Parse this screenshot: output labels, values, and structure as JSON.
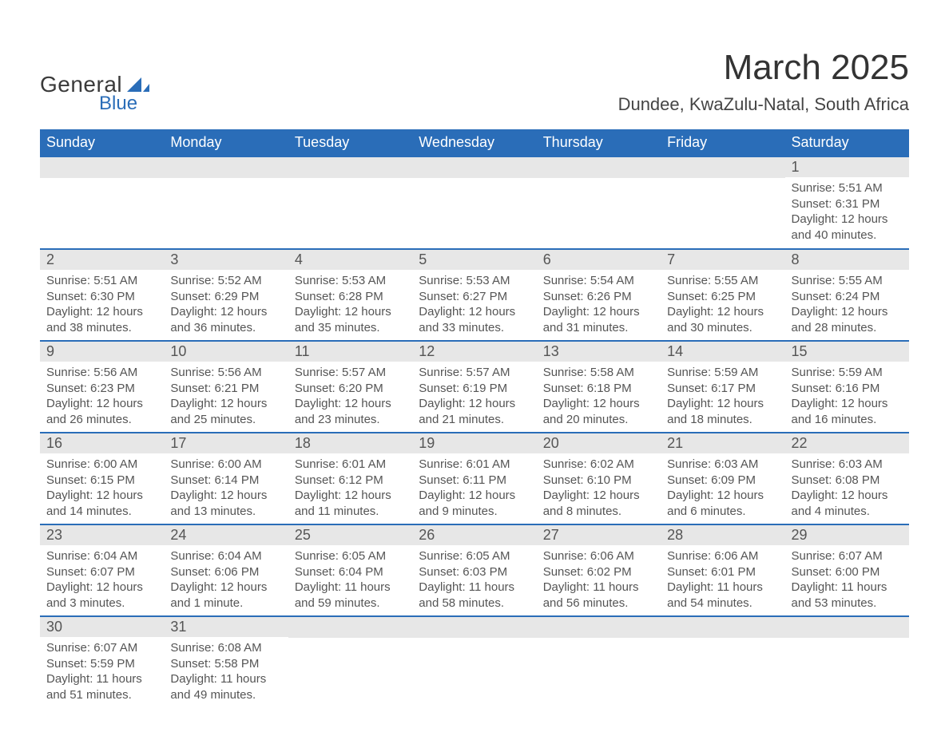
{
  "brand": {
    "line1": "General",
    "line2": "Blue",
    "shape_color": "#2a6db8",
    "text_color_top": "#3a3a3a",
    "text_color_bottom": "#2a6db8"
  },
  "title": "March 2025",
  "subtitle": "Dundee, KwaZulu-Natal, South Africa",
  "colors": {
    "header_bg": "#2a6db8",
    "header_text": "#ffffff",
    "daynum_bg": "#e7e7e7",
    "cell_border": "#2a6db8",
    "body_text": "#555555",
    "background": "#ffffff"
  },
  "fonts": {
    "title_size_pt": 33,
    "subtitle_size_pt": 17,
    "header_size_pt": 14,
    "daynum_size_pt": 14,
    "body_size_pt": 11
  },
  "day_names": [
    "Sunday",
    "Monday",
    "Tuesday",
    "Wednesday",
    "Thursday",
    "Friday",
    "Saturday"
  ],
  "weeks": [
    [
      null,
      null,
      null,
      null,
      null,
      null,
      {
        "day": "1",
        "sunrise": "Sunrise: 5:51 AM",
        "sunset": "Sunset: 6:31 PM",
        "daylight": "Daylight: 12 hours and 40 minutes."
      }
    ],
    [
      {
        "day": "2",
        "sunrise": "Sunrise: 5:51 AM",
        "sunset": "Sunset: 6:30 PM",
        "daylight": "Daylight: 12 hours and 38 minutes."
      },
      {
        "day": "3",
        "sunrise": "Sunrise: 5:52 AM",
        "sunset": "Sunset: 6:29 PM",
        "daylight": "Daylight: 12 hours and 36 minutes."
      },
      {
        "day": "4",
        "sunrise": "Sunrise: 5:53 AM",
        "sunset": "Sunset: 6:28 PM",
        "daylight": "Daylight: 12 hours and 35 minutes."
      },
      {
        "day": "5",
        "sunrise": "Sunrise: 5:53 AM",
        "sunset": "Sunset: 6:27 PM",
        "daylight": "Daylight: 12 hours and 33 minutes."
      },
      {
        "day": "6",
        "sunrise": "Sunrise: 5:54 AM",
        "sunset": "Sunset: 6:26 PM",
        "daylight": "Daylight: 12 hours and 31 minutes."
      },
      {
        "day": "7",
        "sunrise": "Sunrise: 5:55 AM",
        "sunset": "Sunset: 6:25 PM",
        "daylight": "Daylight: 12 hours and 30 minutes."
      },
      {
        "day": "8",
        "sunrise": "Sunrise: 5:55 AM",
        "sunset": "Sunset: 6:24 PM",
        "daylight": "Daylight: 12 hours and 28 minutes."
      }
    ],
    [
      {
        "day": "9",
        "sunrise": "Sunrise: 5:56 AM",
        "sunset": "Sunset: 6:23 PM",
        "daylight": "Daylight: 12 hours and 26 minutes."
      },
      {
        "day": "10",
        "sunrise": "Sunrise: 5:56 AM",
        "sunset": "Sunset: 6:21 PM",
        "daylight": "Daylight: 12 hours and 25 minutes."
      },
      {
        "day": "11",
        "sunrise": "Sunrise: 5:57 AM",
        "sunset": "Sunset: 6:20 PM",
        "daylight": "Daylight: 12 hours and 23 minutes."
      },
      {
        "day": "12",
        "sunrise": "Sunrise: 5:57 AM",
        "sunset": "Sunset: 6:19 PM",
        "daylight": "Daylight: 12 hours and 21 minutes."
      },
      {
        "day": "13",
        "sunrise": "Sunrise: 5:58 AM",
        "sunset": "Sunset: 6:18 PM",
        "daylight": "Daylight: 12 hours and 20 minutes."
      },
      {
        "day": "14",
        "sunrise": "Sunrise: 5:59 AM",
        "sunset": "Sunset: 6:17 PM",
        "daylight": "Daylight: 12 hours and 18 minutes."
      },
      {
        "day": "15",
        "sunrise": "Sunrise: 5:59 AM",
        "sunset": "Sunset: 6:16 PM",
        "daylight": "Daylight: 12 hours and 16 minutes."
      }
    ],
    [
      {
        "day": "16",
        "sunrise": "Sunrise: 6:00 AM",
        "sunset": "Sunset: 6:15 PM",
        "daylight": "Daylight: 12 hours and 14 minutes."
      },
      {
        "day": "17",
        "sunrise": "Sunrise: 6:00 AM",
        "sunset": "Sunset: 6:14 PM",
        "daylight": "Daylight: 12 hours and 13 minutes."
      },
      {
        "day": "18",
        "sunrise": "Sunrise: 6:01 AM",
        "sunset": "Sunset: 6:12 PM",
        "daylight": "Daylight: 12 hours and 11 minutes."
      },
      {
        "day": "19",
        "sunrise": "Sunrise: 6:01 AM",
        "sunset": "Sunset: 6:11 PM",
        "daylight": "Daylight: 12 hours and 9 minutes."
      },
      {
        "day": "20",
        "sunrise": "Sunrise: 6:02 AM",
        "sunset": "Sunset: 6:10 PM",
        "daylight": "Daylight: 12 hours and 8 minutes."
      },
      {
        "day": "21",
        "sunrise": "Sunrise: 6:03 AM",
        "sunset": "Sunset: 6:09 PM",
        "daylight": "Daylight: 12 hours and 6 minutes."
      },
      {
        "day": "22",
        "sunrise": "Sunrise: 6:03 AM",
        "sunset": "Sunset: 6:08 PM",
        "daylight": "Daylight: 12 hours and 4 minutes."
      }
    ],
    [
      {
        "day": "23",
        "sunrise": "Sunrise: 6:04 AM",
        "sunset": "Sunset: 6:07 PM",
        "daylight": "Daylight: 12 hours and 3 minutes."
      },
      {
        "day": "24",
        "sunrise": "Sunrise: 6:04 AM",
        "sunset": "Sunset: 6:06 PM",
        "daylight": "Daylight: 12 hours and 1 minute."
      },
      {
        "day": "25",
        "sunrise": "Sunrise: 6:05 AM",
        "sunset": "Sunset: 6:04 PM",
        "daylight": "Daylight: 11 hours and 59 minutes."
      },
      {
        "day": "26",
        "sunrise": "Sunrise: 6:05 AM",
        "sunset": "Sunset: 6:03 PM",
        "daylight": "Daylight: 11 hours and 58 minutes."
      },
      {
        "day": "27",
        "sunrise": "Sunrise: 6:06 AM",
        "sunset": "Sunset: 6:02 PM",
        "daylight": "Daylight: 11 hours and 56 minutes."
      },
      {
        "day": "28",
        "sunrise": "Sunrise: 6:06 AM",
        "sunset": "Sunset: 6:01 PM",
        "daylight": "Daylight: 11 hours and 54 minutes."
      },
      {
        "day": "29",
        "sunrise": "Sunrise: 6:07 AM",
        "sunset": "Sunset: 6:00 PM",
        "daylight": "Daylight: 11 hours and 53 minutes."
      }
    ],
    [
      {
        "day": "30",
        "sunrise": "Sunrise: 6:07 AM",
        "sunset": "Sunset: 5:59 PM",
        "daylight": "Daylight: 11 hours and 51 minutes."
      },
      {
        "day": "31",
        "sunrise": "Sunrise: 6:08 AM",
        "sunset": "Sunset: 5:58 PM",
        "daylight": "Daylight: 11 hours and 49 minutes."
      },
      null,
      null,
      null,
      null,
      null
    ]
  ]
}
